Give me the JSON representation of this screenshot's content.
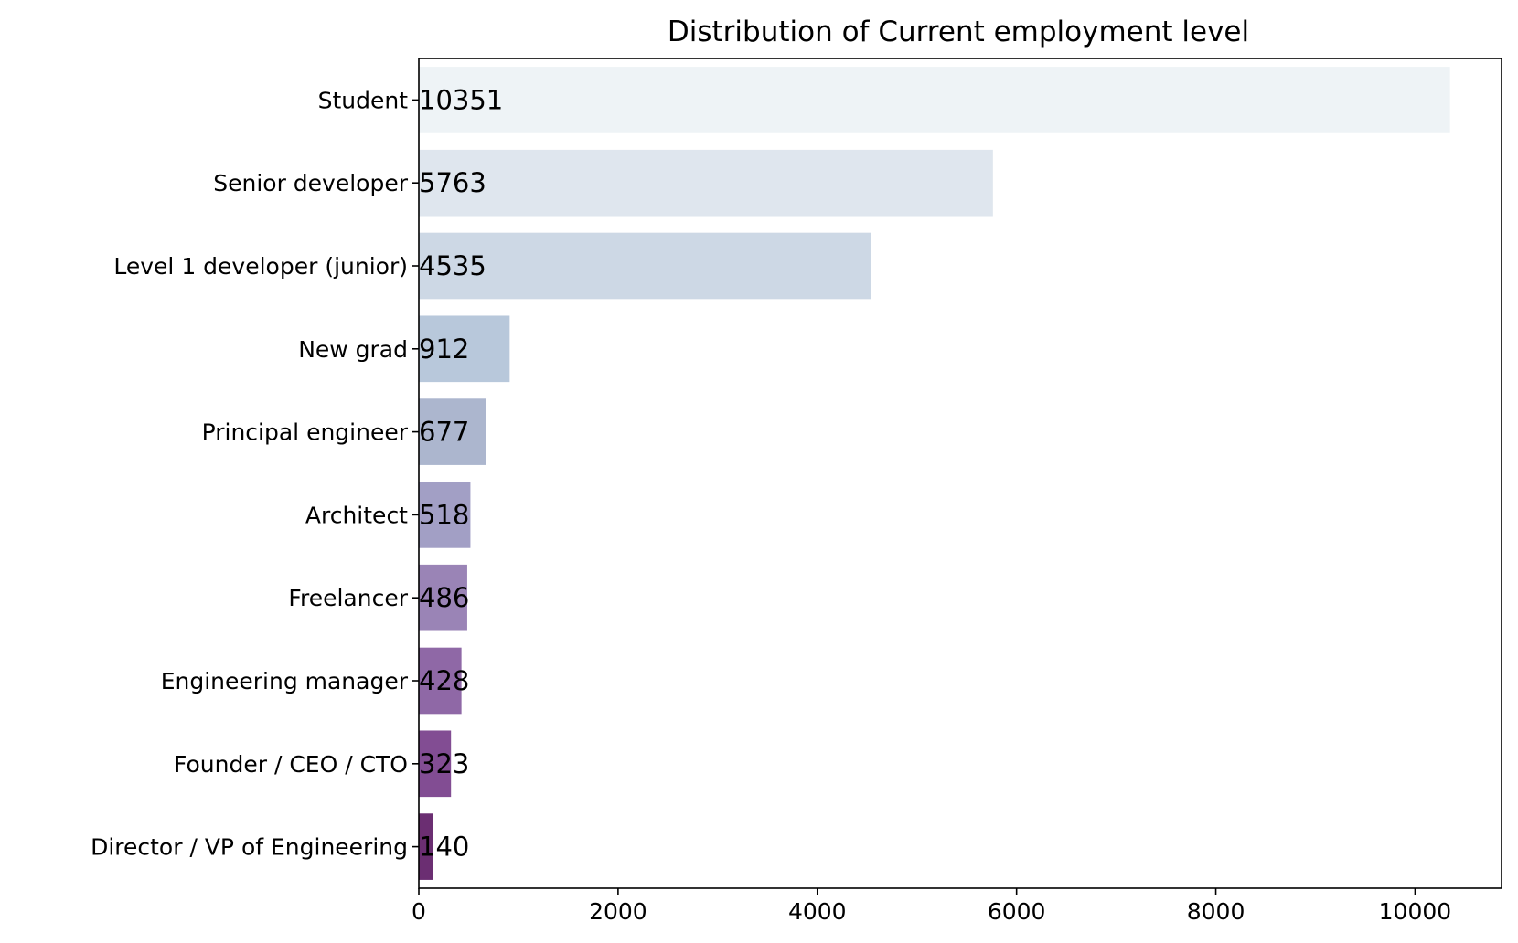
{
  "chart_data": {
    "type": "bar",
    "orientation": "horizontal",
    "title": "Distribution of Current employment level",
    "xlabel": "",
    "ylabel": "",
    "categories": [
      "Student",
      "Senior developer",
      "Level 1 developer (junior)",
      "New grad",
      "Principal engineer",
      "Architect",
      "Freelancer",
      "Engineering manager",
      "Founder / CEO / CTO",
      "Director / VP of Engineering"
    ],
    "values": [
      10351,
      5763,
      4535,
      912,
      677,
      518,
      486,
      428,
      323,
      140
    ],
    "colors": [
      "#eef3f6",
      "#dfe6ee",
      "#cdd8e5",
      "#b8c8db",
      "#acb6ce",
      "#a29fc5",
      "#9a84b6",
      "#8f68a6",
      "#824d93",
      "#6b2e72"
    ],
    "xlim": [
      0,
      10868
    ],
    "xticks": [
      0,
      2000,
      4000,
      6000,
      8000,
      10000
    ],
    "grid": false,
    "legend": "none"
  }
}
